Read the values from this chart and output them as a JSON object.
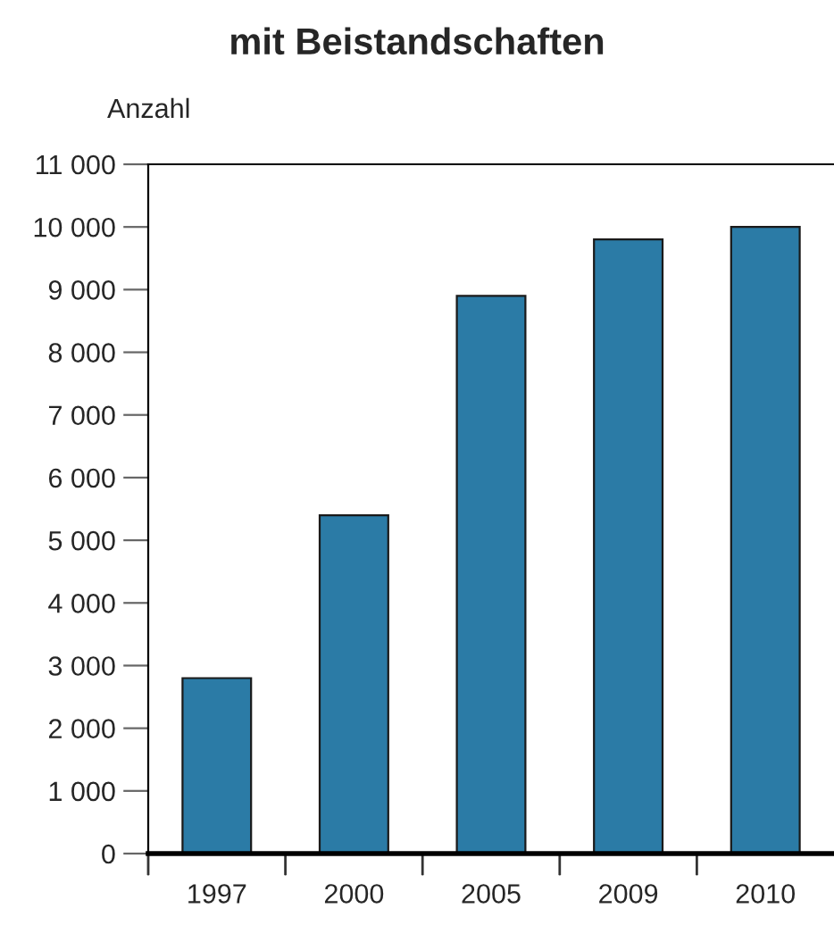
{
  "chart_data": {
    "type": "bar",
    "title": "mit Beistandschaften",
    "ylabel": "Anzahl",
    "categories": [
      "1997",
      "2000",
      "2005",
      "2009",
      "2010"
    ],
    "values": [
      2800,
      5400,
      8900,
      9800,
      10000
    ],
    "color": "#2b7ba6",
    "ylim": [
      0,
      11000
    ],
    "yticks": [
      {
        "value": 0,
        "label": "0"
      },
      {
        "value": 1000,
        "label": "1 000"
      },
      {
        "value": 2000,
        "label": "2 000"
      },
      {
        "value": 3000,
        "label": "3 000"
      },
      {
        "value": 4000,
        "label": "4 000"
      },
      {
        "value": 5000,
        "label": "5 000"
      },
      {
        "value": 6000,
        "label": "6 000"
      },
      {
        "value": 7000,
        "label": "7 000"
      },
      {
        "value": 8000,
        "label": "8 000"
      },
      {
        "value": 9000,
        "label": "9 000"
      },
      {
        "value": 10000,
        "label": "10 000"
      },
      {
        "value": 11000,
        "label": "11 000"
      }
    ],
    "grid": false,
    "legend": false
  }
}
